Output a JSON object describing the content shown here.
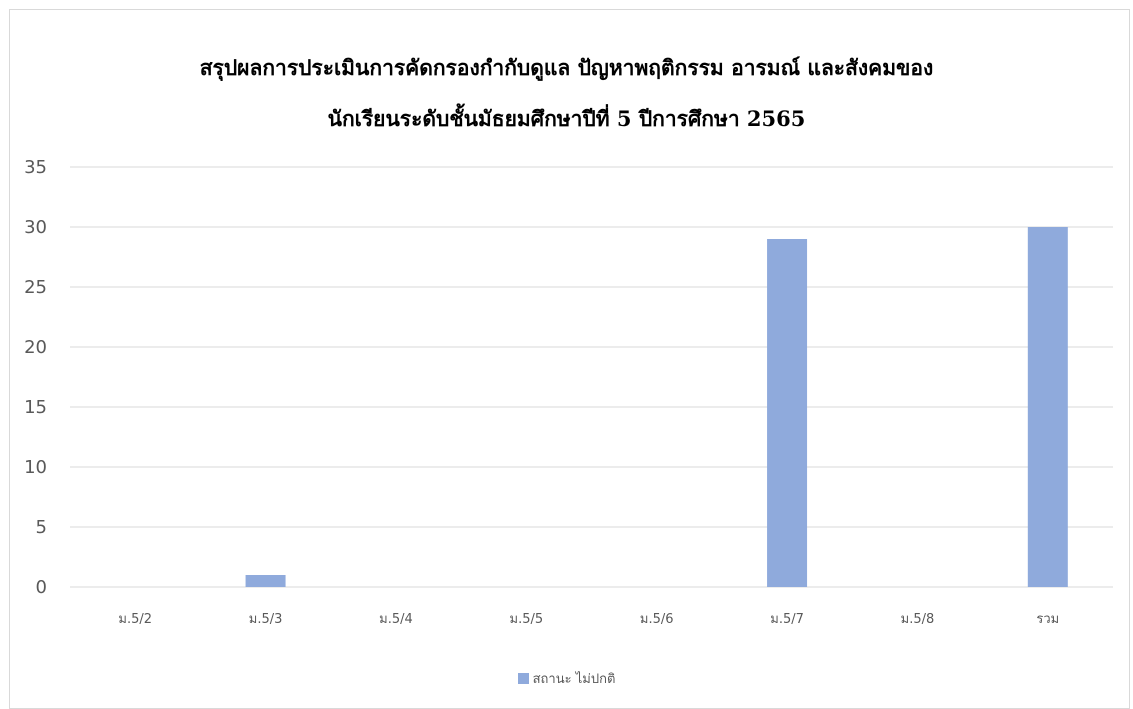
{
  "chart_data": {
    "type": "bar",
    "title_lines": [
      "สรุปผลการประเมินการคัดกรองกำกับดูแล ปัญหาพฤติกรรม อารมณ์ และสังคมของ",
      "นักเรียนระดับชั้นมัธยมศึกษาปีที่  5 ปีการศึกษา 2565"
    ],
    "categories": [
      "ม.5/2",
      "ม.5/3",
      "ม.5/4",
      "ม.5/5",
      "ม.5/6",
      "ม.5/7",
      "ม.5/8",
      "รวม"
    ],
    "series": [
      {
        "name": "สถานะ ไม่ปกติ",
        "values": [
          0,
          1,
          0,
          0,
          0,
          29,
          0,
          30
        ],
        "color": "#8faadc"
      }
    ],
    "ylim": [
      0,
      35
    ],
    "yticks": [
      0,
      5,
      10,
      15,
      20,
      25,
      30,
      35
    ],
    "xlabel": "",
    "ylabel": "",
    "grid": true,
    "legend_position": "bottom"
  }
}
